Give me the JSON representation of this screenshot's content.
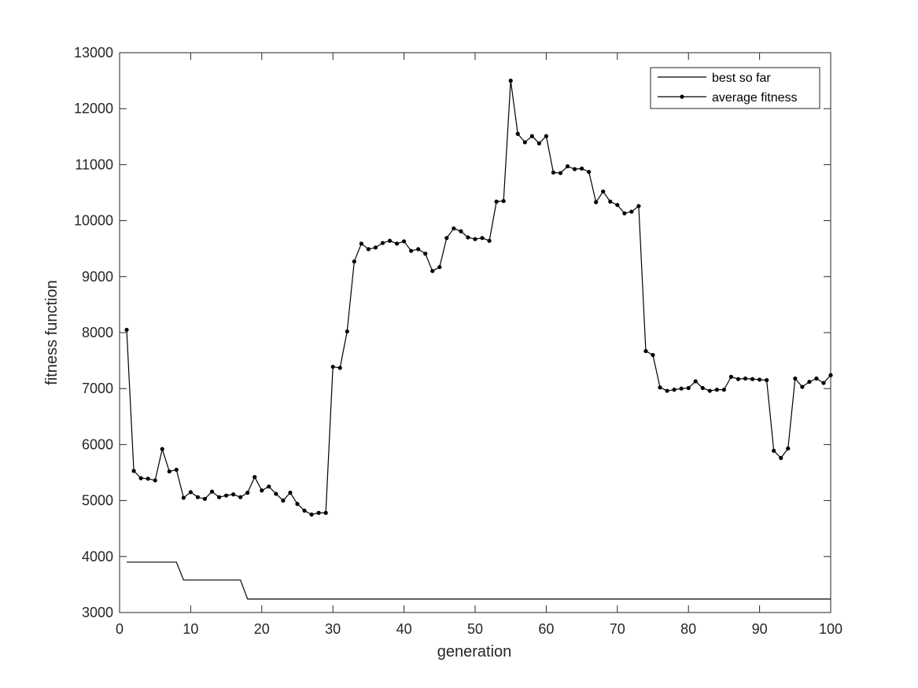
{
  "chart_data": {
    "type": "line",
    "title": "",
    "xlabel": "generation",
    "ylabel": "fitness function",
    "xlim": [
      0,
      100
    ],
    "ylim": [
      3000,
      13000
    ],
    "xticks": [
      "0",
      "10",
      "20",
      "30",
      "40",
      "50",
      "60",
      "70",
      "80",
      "90",
      "100"
    ],
    "yticks": [
      "3000",
      "4000",
      "5000",
      "6000",
      "7000",
      "8000",
      "9000",
      "10000",
      "11000",
      "12000",
      "13000"
    ],
    "grid": false,
    "legend_position": "top-right",
    "colors": {
      "line": "#000000",
      "axis": "#262626"
    },
    "series": [
      {
        "name": "best so far",
        "marker": "none",
        "x": [
          1,
          2,
          3,
          4,
          5,
          6,
          7,
          8,
          9,
          10,
          11,
          12,
          13,
          14,
          15,
          16,
          17,
          18,
          19,
          20,
          21,
          22,
          23,
          24,
          25,
          26,
          27,
          28,
          29,
          30,
          31,
          32,
          33,
          34,
          35,
          36,
          37,
          38,
          39,
          40,
          41,
          42,
          43,
          44,
          45,
          46,
          47,
          48,
          49,
          50,
          51,
          52,
          53,
          54,
          55,
          56,
          57,
          58,
          59,
          60,
          61,
          62,
          63,
          64,
          65,
          66,
          67,
          68,
          69,
          70,
          71,
          72,
          73,
          74,
          75,
          76,
          77,
          78,
          79,
          80,
          81,
          82,
          83,
          84,
          85,
          86,
          87,
          88,
          89,
          90,
          91,
          92,
          93,
          94,
          95,
          96,
          97,
          98,
          99,
          100
        ],
        "values": [
          3900,
          3900,
          3900,
          3900,
          3900,
          3900,
          3900,
          3900,
          3580,
          3580,
          3580,
          3580,
          3580,
          3580,
          3580,
          3580,
          3580,
          3240,
          3240,
          3240,
          3240,
          3240,
          3240,
          3240,
          3240,
          3240,
          3240,
          3240,
          3240,
          3240,
          3240,
          3240,
          3240,
          3240,
          3240,
          3240,
          3240,
          3240,
          3240,
          3240,
          3240,
          3240,
          3240,
          3240,
          3240,
          3240,
          3240,
          3240,
          3240,
          3240,
          3240,
          3240,
          3240,
          3240,
          3240,
          3240,
          3240,
          3240,
          3240,
          3240,
          3240,
          3240,
          3240,
          3240,
          3240,
          3240,
          3240,
          3240,
          3240,
          3240,
          3240,
          3240,
          3240,
          3240,
          3240,
          3240,
          3240,
          3240,
          3240,
          3240,
          3240,
          3240,
          3240,
          3240,
          3240,
          3240,
          3240,
          3240,
          3240,
          3240,
          3240,
          3240,
          3240,
          3240,
          3240,
          3240,
          3240,
          3240,
          3240,
          3240
        ]
      },
      {
        "name": "average fitness",
        "marker": "dot",
        "x": [
          1,
          2,
          3,
          4,
          5,
          6,
          7,
          8,
          9,
          10,
          11,
          12,
          13,
          14,
          15,
          16,
          17,
          18,
          19,
          20,
          21,
          22,
          23,
          24,
          25,
          26,
          27,
          28,
          29,
          30,
          31,
          32,
          33,
          34,
          35,
          36,
          37,
          38,
          39,
          40,
          41,
          42,
          43,
          44,
          45,
          46,
          47,
          48,
          49,
          50,
          51,
          52,
          53,
          54,
          55,
          56,
          57,
          58,
          59,
          60,
          61,
          62,
          63,
          64,
          65,
          66,
          67,
          68,
          69,
          70,
          71,
          72,
          73,
          74,
          75,
          76,
          77,
          78,
          79,
          80,
          81,
          82,
          83,
          84,
          85,
          86,
          87,
          88,
          89,
          90,
          91,
          92,
          93,
          94,
          95,
          96,
          97,
          98,
          99,
          100
        ],
        "values": [
          8050,
          5530,
          5400,
          5390,
          5360,
          5920,
          5520,
          5550,
          5050,
          5150,
          5060,
          5030,
          5160,
          5060,
          5090,
          5110,
          5060,
          5140,
          5420,
          5180,
          5250,
          5120,
          5000,
          5140,
          4940,
          4820,
          4750,
          4780,
          4780,
          7390,
          7370,
          8020,
          9270,
          9590,
          9490,
          9520,
          9600,
          9640,
          9590,
          9630,
          9460,
          9490,
          9410,
          9100,
          9170,
          9690,
          9860,
          9810,
          9700,
          9670,
          9690,
          9640,
          10340,
          10350,
          12500,
          11550,
          11400,
          11510,
          11380,
          11510,
          10860,
          10850,
          10970,
          10920,
          10930,
          10870,
          10330,
          10520,
          10340,
          10280,
          10130,
          10160,
          10260,
          7670,
          7600,
          7020,
          6960,
          6980,
          7000,
          7010,
          7130,
          7010,
          6960,
          6980,
          6980,
          7210,
          7170,
          7180,
          7170,
          7160,
          7150,
          5890,
          5760,
          5930,
          7180,
          7030,
          7120,
          7180,
          7100,
          7240
        ]
      }
    ]
  }
}
